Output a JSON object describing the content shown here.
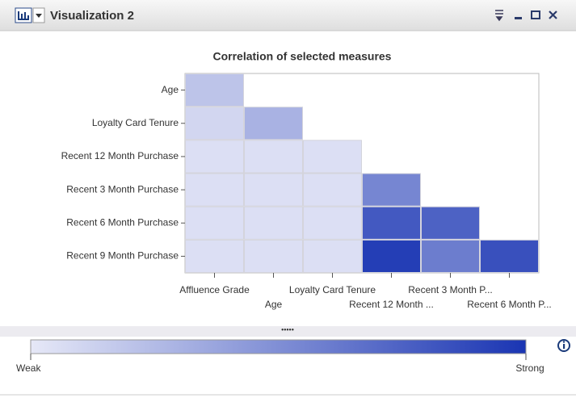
{
  "window": {
    "title": "Visualization 2"
  },
  "chart_data": {
    "type": "heatmap",
    "title": "Correlation of selected measures",
    "x_categories": [
      "Affluence Grade",
      "Age",
      "Loyalty Card Tenure",
      "Recent 12 Month ...",
      "Recent 3 Month P...",
      "Recent 6 Month P..."
    ],
    "y_categories": [
      "Age",
      "Loyalty Card Tenure",
      "Recent 12 Month Purchase",
      "Recent 3 Month Purchase",
      "Recent 6 Month Purchase",
      "Recent 9 Month Purchase"
    ],
    "values": [
      [
        0.2,
        null,
        null,
        null,
        null,
        null
      ],
      [
        0.1,
        0.3,
        null,
        null,
        null,
        null
      ],
      [
        0.05,
        0.05,
        0.05,
        null,
        null,
        null
      ],
      [
        0.05,
        0.05,
        0.05,
        0.55,
        null,
        null
      ],
      [
        0.05,
        0.05,
        0.05,
        0.8,
        0.75,
        null
      ],
      [
        0.05,
        0.05,
        0.05,
        0.95,
        0.6,
        0.85
      ]
    ],
    "colorscale": [
      "#e6e8f7",
      "#1a35b3"
    ],
    "clim": [
      0,
      1
    ],
    "colorbar_ticks": [
      {
        "value": 0,
        "label": "Weak"
      },
      {
        "value": 1,
        "label": "Strong"
      }
    ]
  }
}
